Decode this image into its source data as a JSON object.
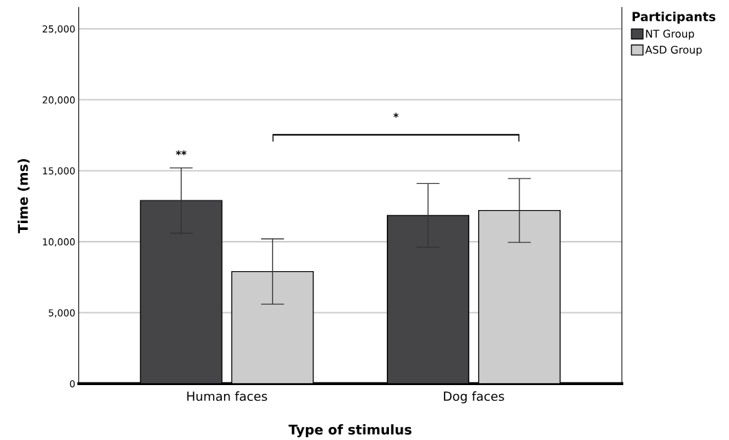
{
  "chart_data": {
    "type": "bar",
    "xlabel": "Type of stimulus",
    "ylabel": "Time (ms)",
    "legend_title": "Participants",
    "legend": "top right",
    "grid": "y",
    "categories": [
      "Human faces",
      "Dog faces"
    ],
    "series": [
      {
        "name": "NT Group",
        "color": "#454547",
        "values": [
          12900,
          11850
        ],
        "errors": [
          2300,
          2250
        ]
      },
      {
        "name": "ASD Group",
        "color": "#cccccc",
        "values": [
          7900,
          12200
        ],
        "errors": [
          2300,
          2250
        ]
      }
    ],
    "ylim": [
      0,
      26500
    ],
    "yticks": [
      {
        "value": 0,
        "label": "0"
      },
      {
        "value": 5000,
        "label": "5,000"
      },
      {
        "value": 10000,
        "label": "10,000"
      },
      {
        "value": 15000,
        "label": "15,000"
      },
      {
        "value": 20000,
        "label": "20,000"
      },
      {
        "value": 25000,
        "label": "25,000"
      }
    ],
    "annotations": [
      "**",
      "*"
    ]
  }
}
